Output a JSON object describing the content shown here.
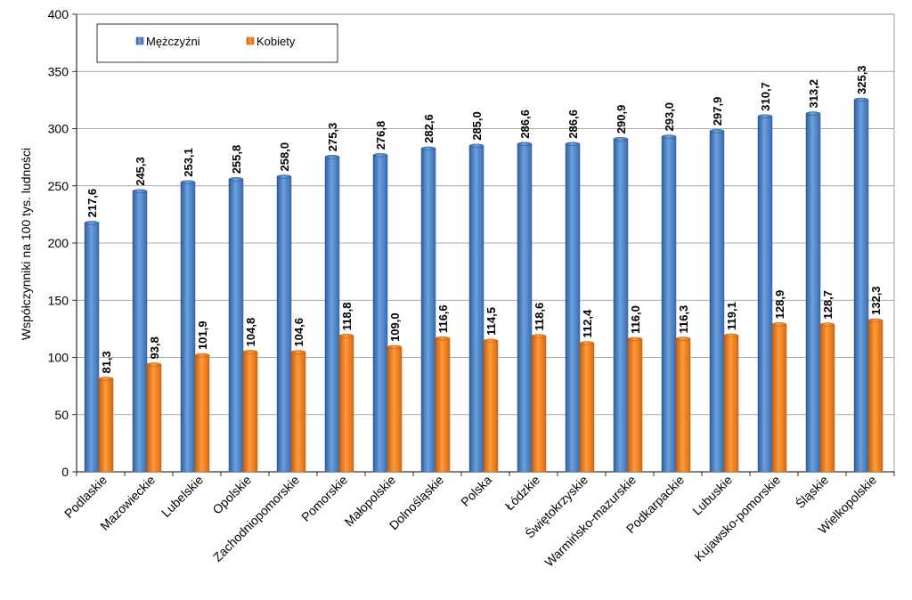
{
  "chart_data": {
    "type": "bar",
    "ylabel": "Współczynniki na 100 tys. ludności",
    "ylim": [
      0,
      400
    ],
    "yticks": [
      0,
      50,
      100,
      150,
      200,
      250,
      300,
      350,
      400
    ],
    "grid": true,
    "legend_position": "top-left",
    "categories": [
      "Podlaskie",
      "Mazowieckie",
      "Lubelskie",
      "Opolskie",
      "Zachodniopomorskie",
      "Pomorskie",
      "Małopolskie",
      "Dolnośląskie",
      "Polska",
      "Łódzkie",
      "Świętokrzyskie",
      "Warmińsko-mazurskie",
      "Podkarpackie",
      "Lubuskie",
      "Kujawsko-pomorskie",
      "Śląskie",
      "Wielkopolskie"
    ],
    "series": [
      {
        "name": "Mężczyźni",
        "color": "#4a7fc4",
        "values": [
          217.6,
          245.3,
          253.1,
          255.8,
          258.0,
          275.3,
          276.8,
          282.6,
          285.0,
          286.6,
          286.6,
          290.9,
          293.0,
          297.9,
          310.7,
          313.2,
          325.3
        ],
        "labels": [
          "217,6",
          "245,3",
          "253,1",
          "255,8",
          "258,0",
          "275,3",
          "276,8",
          "282,6",
          "285,0",
          "286,6",
          "286,6",
          "290,9",
          "293,0",
          "297,9",
          "310,7",
          "313,2",
          "325,3"
        ]
      },
      {
        "name": "Kobiety",
        "color": "#f07f1c",
        "values": [
          81.3,
          93.8,
          101.9,
          104.8,
          104.6,
          118.8,
          109.0,
          116.6,
          114.5,
          118.6,
          112.4,
          116.0,
          116.3,
          119.1,
          128.9,
          128.7,
          132.3
        ],
        "labels": [
          "81,3",
          "93,8",
          "101,9",
          "104,8",
          "104,6",
          "118,8",
          "109,0",
          "116,6",
          "114,5",
          "118,6",
          "112,4",
          "116,0",
          "116,3",
          "119,1",
          "128,9",
          "128,7",
          "132,3"
        ]
      }
    ]
  }
}
